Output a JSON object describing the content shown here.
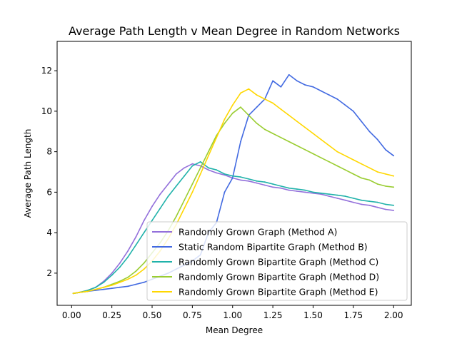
{
  "chart_data": {
    "type": "line",
    "title": "Average Path Length v Mean Degree in Random Networks",
    "xlabel": "Mean Degree",
    "ylabel": "Average Path Length",
    "xlim": [
      -0.09,
      2.11
    ],
    "ylim": [
      0.41,
      13.45
    ],
    "x_ticks": [
      {
        "value": 0.0,
        "label": "0.00"
      },
      {
        "value": 0.25,
        "label": "0.25"
      },
      {
        "value": 0.5,
        "label": "0.50"
      },
      {
        "value": 0.75,
        "label": "0.75"
      },
      {
        "value": 1.0,
        "label": "1.00"
      },
      {
        "value": 1.25,
        "label": "1.25"
      },
      {
        "value": 1.5,
        "label": "1.50"
      },
      {
        "value": 1.75,
        "label": "1.75"
      },
      {
        "value": 2.0,
        "label": "2.00"
      }
    ],
    "y_ticks": [
      {
        "value": 2,
        "label": "2"
      },
      {
        "value": 4,
        "label": "4"
      },
      {
        "value": 6,
        "label": "6"
      },
      {
        "value": 8,
        "label": "8"
      },
      {
        "value": 10,
        "label": "10"
      },
      {
        "value": 12,
        "label": "12"
      }
    ],
    "grid": false,
    "legend_position": "lower-right",
    "series": [
      {
        "name": "Randomly Grown Graph (Method A)",
        "color": "#9370DB",
        "x": [
          0.01,
          0.05,
          0.1,
          0.15,
          0.2,
          0.25,
          0.3,
          0.35,
          0.4,
          0.45,
          0.5,
          0.55,
          0.6,
          0.65,
          0.7,
          0.75,
          0.8,
          0.85,
          0.9,
          0.95,
          1.0,
          1.05,
          1.1,
          1.15,
          1.2,
          1.25,
          1.3,
          1.35,
          1.4,
          1.45,
          1.5,
          1.55,
          1.6,
          1.65,
          1.7,
          1.75,
          1.8,
          1.85,
          1.9,
          1.95,
          2.0
        ],
        "values": [
          1.0,
          1.05,
          1.15,
          1.3,
          1.6,
          2.0,
          2.5,
          3.1,
          3.8,
          4.6,
          5.3,
          5.9,
          6.4,
          6.9,
          7.2,
          7.4,
          7.3,
          7.1,
          6.95,
          6.85,
          6.7,
          6.6,
          6.55,
          6.45,
          6.35,
          6.25,
          6.2,
          6.1,
          6.05,
          6.0,
          5.95,
          5.9,
          5.8,
          5.7,
          5.6,
          5.5,
          5.4,
          5.35,
          5.25,
          5.15,
          5.1
        ]
      },
      {
        "name": "Static Random Bipartite Graph (Method B)",
        "color": "#4169E1",
        "x": [
          0.01,
          0.05,
          0.1,
          0.15,
          0.2,
          0.25,
          0.3,
          0.35,
          0.4,
          0.45,
          0.5,
          0.55,
          0.6,
          0.65,
          0.7,
          0.75,
          0.8,
          0.85,
          0.9,
          0.95,
          1.0,
          1.05,
          1.1,
          1.15,
          1.2,
          1.25,
          1.3,
          1.35,
          1.4,
          1.45,
          1.5,
          1.55,
          1.6,
          1.65,
          1.7,
          1.75,
          1.8,
          1.85,
          1.9,
          1.95,
          2.0
        ],
        "values": [
          1.0,
          1.05,
          1.1,
          1.15,
          1.2,
          1.25,
          1.3,
          1.35,
          1.45,
          1.55,
          1.7,
          1.85,
          2.0,
          2.2,
          2.4,
          2.6,
          2.9,
          4.0,
          4.5,
          6.0,
          6.7,
          8.5,
          9.8,
          10.2,
          10.6,
          11.5,
          11.2,
          11.8,
          11.5,
          11.3,
          11.2,
          11.0,
          10.8,
          10.6,
          10.3,
          10.0,
          9.5,
          9.0,
          8.6,
          8.1,
          7.8
        ]
      },
      {
        "name": "Randomly Grown Bipartite Graph (Method C)",
        "color": "#20B2AA",
        "x": [
          0.01,
          0.05,
          0.1,
          0.15,
          0.2,
          0.25,
          0.3,
          0.35,
          0.4,
          0.45,
          0.5,
          0.55,
          0.6,
          0.65,
          0.7,
          0.75,
          0.8,
          0.85,
          0.9,
          0.95,
          1.0,
          1.05,
          1.1,
          1.15,
          1.2,
          1.25,
          1.3,
          1.35,
          1.4,
          1.45,
          1.5,
          1.55,
          1.6,
          1.65,
          1.7,
          1.75,
          1.8,
          1.85,
          1.9,
          1.95,
          2.0
        ],
        "values": [
          1.0,
          1.05,
          1.15,
          1.3,
          1.55,
          1.9,
          2.3,
          2.8,
          3.4,
          4.0,
          4.6,
          5.2,
          5.8,
          6.3,
          6.8,
          7.3,
          7.5,
          7.2,
          7.1,
          6.9,
          6.8,
          6.75,
          6.65,
          6.55,
          6.5,
          6.4,
          6.3,
          6.2,
          6.15,
          6.1,
          6.0,
          5.95,
          5.9,
          5.85,
          5.8,
          5.7,
          5.6,
          5.55,
          5.5,
          5.4,
          5.35
        ]
      },
      {
        "name": "Randomly Grown Bipartite Graph (Method D)",
        "color": "#9ACD32",
        "x": [
          0.01,
          0.05,
          0.1,
          0.15,
          0.2,
          0.25,
          0.3,
          0.35,
          0.4,
          0.45,
          0.5,
          0.55,
          0.6,
          0.65,
          0.7,
          0.75,
          0.8,
          0.85,
          0.9,
          0.95,
          1.0,
          1.05,
          1.1,
          1.15,
          1.2,
          1.25,
          1.3,
          1.35,
          1.4,
          1.45,
          1.5,
          1.55,
          1.6,
          1.65,
          1.7,
          1.75,
          1.8,
          1.85,
          1.9,
          1.95,
          2.0
        ],
        "values": [
          1.0,
          1.05,
          1.1,
          1.2,
          1.3,
          1.45,
          1.6,
          1.8,
          2.1,
          2.5,
          3.0,
          3.5,
          4.1,
          4.8,
          5.6,
          6.4,
          7.2,
          8.0,
          8.8,
          9.4,
          9.9,
          10.2,
          9.8,
          9.4,
          9.1,
          8.9,
          8.7,
          8.5,
          8.3,
          8.1,
          7.9,
          7.7,
          7.5,
          7.3,
          7.1,
          6.9,
          6.7,
          6.6,
          6.4,
          6.3,
          6.25
        ]
      },
      {
        "name": "Randomly Grown Bipartite Graph (Method E)",
        "color": "#FFD700",
        "x": [
          0.01,
          0.05,
          0.1,
          0.15,
          0.2,
          0.25,
          0.3,
          0.35,
          0.4,
          0.45,
          0.5,
          0.55,
          0.6,
          0.65,
          0.7,
          0.75,
          0.8,
          0.85,
          0.9,
          0.95,
          1.0,
          1.05,
          1.1,
          1.15,
          1.2,
          1.25,
          1.3,
          1.35,
          1.4,
          1.45,
          1.5,
          1.55,
          1.6,
          1.65,
          1.7,
          1.75,
          1.8,
          1.85,
          1.9,
          1.95,
          2.0
        ],
        "values": [
          1.0,
          1.05,
          1.1,
          1.2,
          1.3,
          1.4,
          1.55,
          1.7,
          1.9,
          2.2,
          2.6,
          3.1,
          3.7,
          4.4,
          5.2,
          6.0,
          6.9,
          7.8,
          8.7,
          9.6,
          10.3,
          10.9,
          11.1,
          10.8,
          10.6,
          10.4,
          10.1,
          9.8,
          9.5,
          9.2,
          8.9,
          8.6,
          8.3,
          8.0,
          7.8,
          7.6,
          7.4,
          7.2,
          7.0,
          6.9,
          6.8
        ]
      }
    ]
  }
}
